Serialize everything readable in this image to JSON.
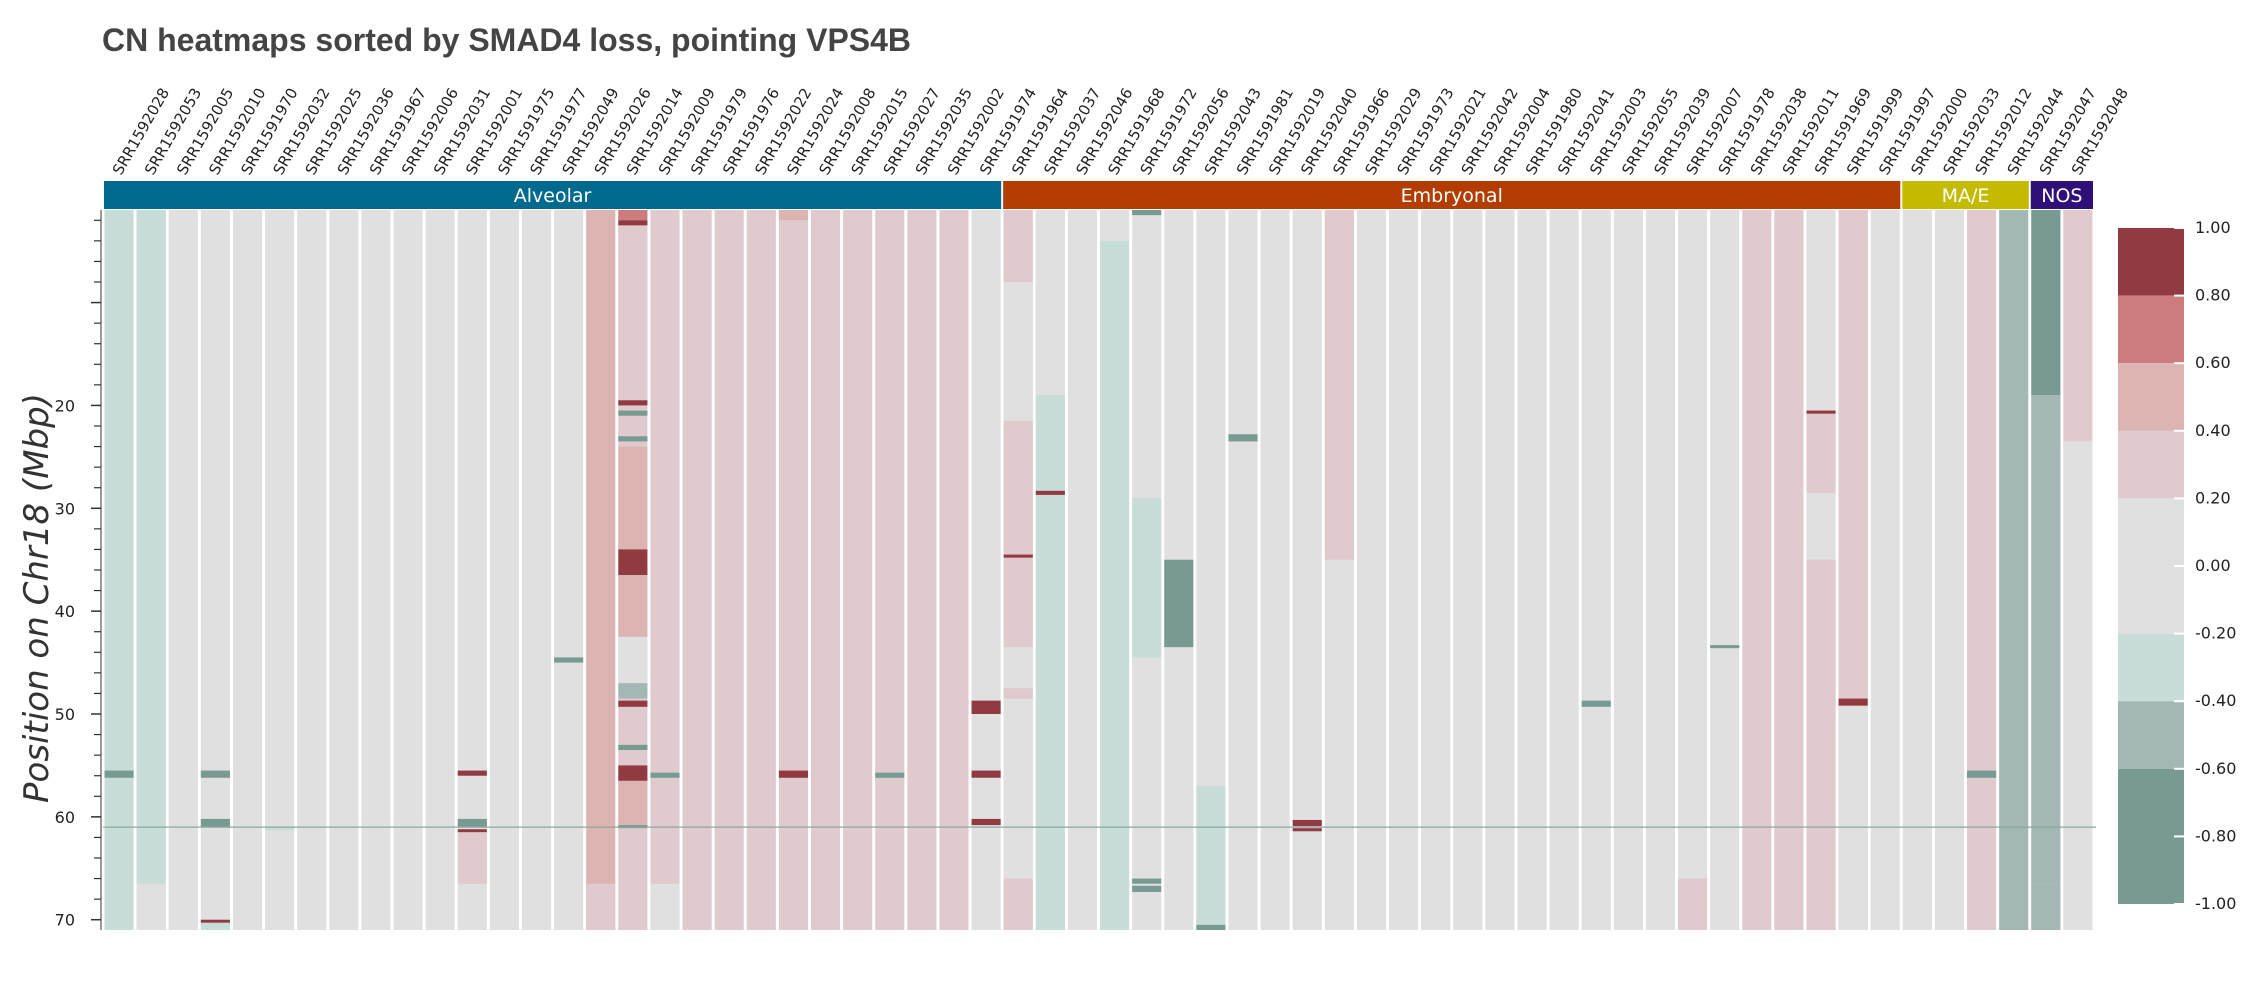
{
  "title": "CN heatmaps sorted by SMAD4 loss, pointing VPS4B",
  "chart_data": {
    "type": "heatmap",
    "title": "CN heatmaps sorted by SMAD4 loss, pointing VPS4B",
    "ylabel": "Position on Chr18 (Mbp)",
    "ylim": [
      1,
      71
    ],
    "yticks": [
      20,
      30,
      40,
      50,
      60,
      70
    ],
    "marker_position": 61,
    "samples": [
      "SRR1592028",
      "SRR1592053",
      "SRR1592005",
      "SRR1592010",
      "SRR1591970",
      "SRR1592032",
      "SRR1592025",
      "SRR1592036",
      "SRR1591967",
      "SRR1592006",
      "SRR1592031",
      "SRR1592001",
      "SRR1591975",
      "SRR1591977",
      "SRR1592049",
      "SRR1592026",
      "SRR1592014",
      "SRR1592009",
      "SRR1591979",
      "SRR1591976",
      "SRR1592022",
      "SRR1592024",
      "SRR1592008",
      "SRR1592015",
      "SRR1592027",
      "SRR1592035",
      "SRR1592002",
      "SRR1591974",
      "SRR1591964",
      "SRR1592037",
      "SRR1592046",
      "SRR1591968",
      "SRR1591972",
      "SRR1592056",
      "SRR1592043",
      "SRR1591981",
      "SRR1592019",
      "SRR1592040",
      "SRR1591966",
      "SRR1592029",
      "SRR1591973",
      "SRR1592021",
      "SRR1592042",
      "SRR1592004",
      "SRR1591980",
      "SRR1592041",
      "SRR1592003",
      "SRR1592055",
      "SRR1592039",
      "SRR1592007",
      "SRR1591978",
      "SRR1592038",
      "SRR1592011",
      "SRR1591969",
      "SRR1591999",
      "SRR1591997",
      "SRR1592000",
      "SRR1592033",
      "SRR1592012",
      "SRR1592044",
      "SRR1592047",
      "SRR1592048"
    ],
    "groups": [
      {
        "name": "Alveolar",
        "start": 0,
        "end": 27,
        "color": "#006a8e"
      },
      {
        "name": "Embryonal",
        "start": 28,
        "end": 55,
        "color": "#b33c00"
      },
      {
        "name": "MA/E",
        "start": 56,
        "end": 59,
        "color": "#c4bb00"
      },
      {
        "name": "NOS",
        "start": 60,
        "end": 61,
        "color": "#2f0f78"
      }
    ],
    "colorscale": {
      "min": -1.0,
      "max": 1.0,
      "tick_labels": [
        "1.00",
        "0.80",
        "0.60",
        "0.40",
        "0.20",
        "0.00",
        "-0.20",
        "-0.40",
        "-0.60",
        "-0.80",
        "-1.00"
      ],
      "bins": [
        {
          "from": 0.8,
          "to": 1.0,
          "color": "#923a42"
        },
        {
          "from": 0.6,
          "to": 0.8,
          "color": "#cc7c7c"
        },
        {
          "from": 0.4,
          "to": 0.6,
          "color": "#dcb4b1"
        },
        {
          "from": 0.2,
          "to": 0.4,
          "color": "#e0cacd"
        },
        {
          "from": -0.2,
          "to": 0.2,
          "color": "#e0e0e0"
        },
        {
          "from": -0.4,
          "to": -0.2,
          "color": "#c8ddd7"
        },
        {
          "from": -0.6,
          "to": -0.4,
          "color": "#a3b8b4"
        },
        {
          "from": -1.0,
          "to": -0.6,
          "color": "#779a92"
        }
      ]
    },
    "base_values": [
      -0.3,
      -0.3,
      0,
      0,
      0,
      0,
      0,
      0,
      0,
      0,
      0,
      0,
      0,
      0,
      0,
      0.5,
      0.3,
      0.3,
      0.3,
      0.3,
      0.3,
      0.3,
      0.3,
      0.3,
      0.3,
      0.3,
      0.3,
      0,
      -0.3,
      -0.3,
      0,
      0,
      0,
      0,
      0,
      0,
      0,
      0,
      0,
      0,
      0,
      0,
      0,
      0,
      0,
      0,
      0,
      0,
      0,
      0,
      0,
      0.3,
      0,
      0.3,
      0.4,
      0,
      0,
      0,
      0.3,
      -0.5,
      0.3,
      0
    ],
    "segments": [
      {
        "sample": 1,
        "from": 1,
        "to": 44,
        "value": -0.3
      },
      {
        "sample": 1,
        "from": 44,
        "to": 66.5,
        "value": -0.3
      },
      {
        "sample": 1,
        "from": 66.5,
        "to": 71,
        "value": 0
      },
      {
        "sample": 0,
        "from": 55.5,
        "to": 56.2,
        "value": -0.8
      },
      {
        "sample": 3,
        "from": 55.5,
        "to": 56.2,
        "value": -0.8
      },
      {
        "sample": 3,
        "from": 60.2,
        "to": 61,
        "value": -0.8
      },
      {
        "sample": 3,
        "from": 70,
        "to": 70.3,
        "value": 0.9
      },
      {
        "sample": 3,
        "from": 70.3,
        "to": 71,
        "value": -0.3
      },
      {
        "sample": 5,
        "from": 61,
        "to": 61.3,
        "value": -0.3
      },
      {
        "sample": 11,
        "from": 55.5,
        "to": 56,
        "value": 0.9
      },
      {
        "sample": 11,
        "from": 60.2,
        "to": 61,
        "value": -0.8
      },
      {
        "sample": 11,
        "from": 61.2,
        "to": 61.5,
        "value": 0.9
      },
      {
        "sample": 11,
        "from": 61.5,
        "to": 66.5,
        "value": 0.3
      },
      {
        "sample": 14,
        "from": 44.5,
        "to": 45,
        "value": -0.8
      },
      {
        "sample": 15,
        "from": 66.5,
        "to": 71,
        "value": 0.3
      },
      {
        "sample": 16,
        "from": 1,
        "to": 2,
        "value": 0.7
      },
      {
        "sample": 16,
        "from": 2,
        "to": 2.5,
        "value": 0.9
      },
      {
        "sample": 16,
        "from": 2.5,
        "to": 19.5,
        "value": 0.3
      },
      {
        "sample": 16,
        "from": 19.5,
        "to": 20,
        "value": 0.9
      },
      {
        "sample": 16,
        "from": 20.5,
        "to": 21,
        "value": -0.7
      },
      {
        "sample": 16,
        "from": 23,
        "to": 23.5,
        "value": -0.7
      },
      {
        "sample": 16,
        "from": 24,
        "to": 34,
        "value": 0.5
      },
      {
        "sample": 16,
        "from": 34,
        "to": 36.5,
        "value": 0.9
      },
      {
        "sample": 16,
        "from": 36.5,
        "to": 42.5,
        "value": 0.5
      },
      {
        "sample": 16,
        "from": 42.5,
        "to": 47,
        "value": 0
      },
      {
        "sample": 16,
        "from": 47,
        "to": 48.5,
        "value": -0.5
      },
      {
        "sample": 16,
        "from": 48.7,
        "to": 49.3,
        "value": 0.9
      },
      {
        "sample": 16,
        "from": 53,
        "to": 53.5,
        "value": -0.7
      },
      {
        "sample": 16,
        "from": 55,
        "to": 56.5,
        "value": 0.9
      },
      {
        "sample": 16,
        "from": 56.5,
        "to": 61,
        "value": 0.5
      },
      {
        "sample": 16,
        "from": 60.8,
        "to": 61.1,
        "value": -0.7
      },
      {
        "sample": 17,
        "from": 55.7,
        "to": 56.2,
        "value": -0.7
      },
      {
        "sample": 17,
        "from": 66.5,
        "to": 71,
        "value": 0
      },
      {
        "sample": 21,
        "from": 1,
        "to": 2,
        "value": 0.5
      },
      {
        "sample": 21,
        "from": 55.5,
        "to": 56.2,
        "value": 0.9
      },
      {
        "sample": 24,
        "from": 55.7,
        "to": 56.2,
        "value": -0.7
      },
      {
        "sample": 27,
        "from": 48.7,
        "to": 50,
        "value": 0.9
      },
      {
        "sample": 27,
        "from": 55.5,
        "to": 56.2,
        "value": 0.9
      },
      {
        "sample": 27,
        "from": 60.2,
        "to": 60.8,
        "value": 0.9
      },
      {
        "sample": 28,
        "from": 1,
        "to": 2,
        "value": 0.3
      },
      {
        "sample": 28,
        "from": 2,
        "to": 8,
        "value": 0.3
      },
      {
        "sample": 28,
        "from": 8,
        "to": 21.5,
        "value": 0
      },
      {
        "sample": 28,
        "from": 21.5,
        "to": 43.5,
        "value": 0.3
      },
      {
        "sample": 28,
        "from": 34.5,
        "to": 34.8,
        "value": 0.9
      },
      {
        "sample": 28,
        "from": 43.5,
        "to": 47.5,
        "value": 0
      },
      {
        "sample": 28,
        "from": 47.5,
        "to": 48.5,
        "value": 0.3
      },
      {
        "sample": 28,
        "from": 48.5,
        "to": 66,
        "value": 0
      },
      {
        "sample": 28,
        "from": 66,
        "to": 71,
        "value": 0.3
      },
      {
        "sample": 29,
        "from": 1,
        "to": 2,
        "value": 0
      },
      {
        "sample": 29,
        "from": 2,
        "to": 19,
        "value": 0
      },
      {
        "sample": 29,
        "from": 19,
        "to": 47,
        "value": -0.3
      },
      {
        "sample": 29,
        "from": 28.3,
        "to": 28.7,
        "value": 0.9
      },
      {
        "sample": 29,
        "from": 47,
        "to": 71,
        "value": -0.3
      },
      {
        "sample": 31,
        "from": 1,
        "to": 4,
        "value": 0
      },
      {
        "sample": 31,
        "from": 4,
        "to": 71,
        "value": -0.3
      },
      {
        "sample": 32,
        "from": 1,
        "to": 1.5,
        "value": -0.7
      },
      {
        "sample": 32,
        "from": 29,
        "to": 43,
        "value": -0.3
      },
      {
        "sample": 32,
        "from": 43,
        "to": 44.5,
        "value": -0.3
      },
      {
        "sample": 32,
        "from": 66,
        "to": 66.5,
        "value": -0.7
      },
      {
        "sample": 32,
        "from": 66.7,
        "to": 67.3,
        "value": -0.7
      },
      {
        "sample": 33,
        "from": 35,
        "to": 43.5,
        "value": -0.8
      },
      {
        "sample": 34,
        "from": 57,
        "to": 71,
        "value": -0.3
      },
      {
        "sample": 34,
        "from": 70.5,
        "to": 71,
        "value": -0.8
      },
      {
        "sample": 35,
        "from": 22.8,
        "to": 23.5,
        "value": -0.7
      },
      {
        "sample": 37,
        "from": 60.3,
        "to": 60.9,
        "value": 0.9
      },
      {
        "sample": 37,
        "from": 61.1,
        "to": 61.4,
        "value": 0.9
      },
      {
        "sample": 38,
        "from": 1,
        "to": 35,
        "value": 0.3
      },
      {
        "sample": 46,
        "from": 48.7,
        "to": 49.3,
        "value": -0.7
      },
      {
        "sample": 49,
        "from": 66,
        "to": 71,
        "value": 0.3
      },
      {
        "sample": 50,
        "from": 43.3,
        "to": 43.6,
        "value": -0.7
      },
      {
        "sample": 52,
        "from": 1,
        "to": 71,
        "value": 0.3
      },
      {
        "sample": 53,
        "from": 1,
        "to": 20.5,
        "value": 0
      },
      {
        "sample": 53,
        "from": 20.5,
        "to": 20.8,
        "value": 0.9
      },
      {
        "sample": 53,
        "from": 21,
        "to": 28.5,
        "value": 0.3
      },
      {
        "sample": 53,
        "from": 28.5,
        "to": 35,
        "value": 0
      },
      {
        "sample": 53,
        "from": 35,
        "to": 71,
        "value": 0.3
      },
      {
        "sample": 54,
        "from": 1,
        "to": 48.5,
        "value": 0.3
      },
      {
        "sample": 54,
        "from": 48.5,
        "to": 49.2,
        "value": 0.9
      },
      {
        "sample": 54,
        "from": 49.2,
        "to": 71,
        "value": 0
      },
      {
        "sample": 58,
        "from": 55.5,
        "to": 56.2,
        "value": -0.7
      },
      {
        "sample": 60,
        "from": 1,
        "to": 19,
        "value": -0.8
      },
      {
        "sample": 60,
        "from": 19,
        "to": 66.5,
        "value": -0.5
      },
      {
        "sample": 60,
        "from": 66.5,
        "to": 71,
        "value": -0.5
      },
      {
        "sample": 61,
        "from": 1,
        "to": 23.5,
        "value": 0.3
      },
      {
        "sample": 61,
        "from": 23.5,
        "to": 71,
        "value": 0
      }
    ]
  }
}
